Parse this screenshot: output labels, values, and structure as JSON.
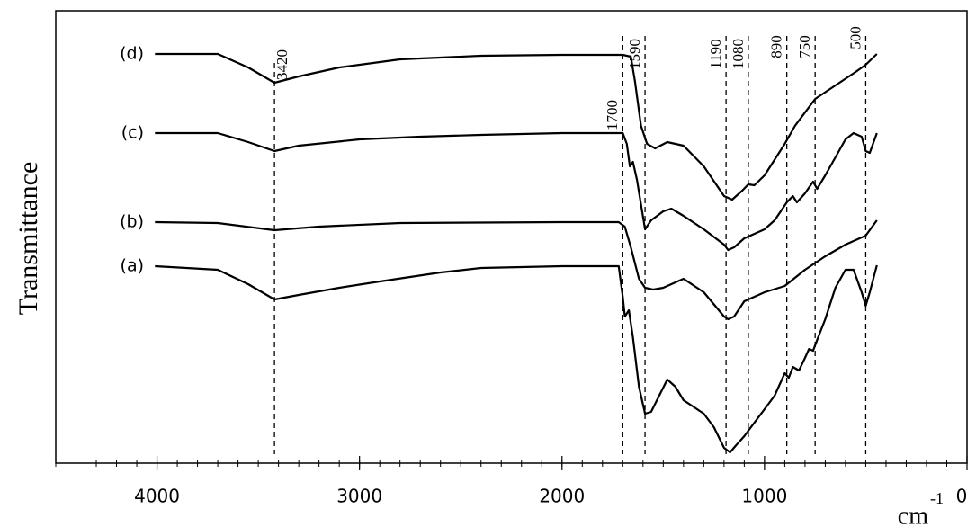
{
  "chart_data": {
    "type": "line",
    "ylabel": "Transmittance",
    "xlabel": "cm",
    "xlabel_sup": "-1",
    "xlim": [
      4500,
      0
    ],
    "xticks": [
      4000,
      3000,
      2000,
      1000,
      0
    ],
    "ylim": [
      0,
      503
    ],
    "color": "#000000",
    "annotations": [
      3420,
      1700,
      1590,
      1190,
      1080,
      890,
      750,
      500
    ],
    "series": [
      {
        "name": "(a)",
        "x": [
          4010,
          3700,
          3550,
          3420,
          3300,
          3100,
          2900,
          2600,
          2400,
          2000,
          1720,
          1700,
          1690,
          1670,
          1650,
          1620,
          1590,
          1560,
          1520,
          1480,
          1440,
          1400,
          1300,
          1250,
          1200,
          1170,
          1140,
          1100,
          1050,
          1000,
          950,
          900,
          880,
          860,
          830,
          800,
          780,
          760,
          740,
          700,
          650,
          600,
          560,
          520,
          500,
          480,
          445
        ],
        "values": [
          219,
          215,
          199,
          182,
          187,
          195,
          202,
          212,
          217,
          219,
          219,
          185,
          163,
          170,
          140,
          85,
          55,
          57,
          75,
          93,
          85,
          70,
          55,
          40,
          17,
          12,
          20,
          30,
          45,
          60,
          75,
          100,
          95,
          107,
          103,
          117,
          127,
          125,
          137,
          160,
          195,
          215,
          215,
          190,
          175,
          190,
          220
        ]
      },
      {
        "name": "(b)",
        "x": [
          4010,
          3700,
          3420,
          3200,
          2800,
          2000,
          1720,
          1690,
          1660,
          1620,
          1590,
          1550,
          1500,
          1400,
          1300,
          1200,
          1180,
          1150,
          1100,
          1000,
          900,
          800,
          700,
          600,
          500,
          445
        ],
        "values": [
          268,
          267,
          259,
          263,
          267,
          268,
          268,
          263,
          240,
          205,
          195,
          193,
          195,
          205,
          190,
          163,
          160,
          163,
          180,
          190,
          197,
          215,
          230,
          243,
          253,
          270
        ]
      },
      {
        "name": "(c)",
        "x": [
          4010,
          3700,
          3550,
          3420,
          3300,
          3000,
          2700,
          2400,
          2000,
          1700,
          1680,
          1665,
          1650,
          1630,
          1590,
          1560,
          1500,
          1460,
          1400,
          1300,
          1200,
          1180,
          1150,
          1100,
          1000,
          950,
          890,
          860,
          840,
          800,
          760,
          740,
          700,
          650,
          600,
          560,
          520,
          500,
          480,
          445
        ],
        "values": [
          367,
          367,
          357,
          347,
          353,
          360,
          363,
          365,
          367,
          367,
          355,
          330,
          335,
          315,
          260,
          270,
          280,
          283,
          275,
          260,
          243,
          237,
          240,
          250,
          260,
          270,
          290,
          297,
          290,
          300,
          313,
          305,
          320,
          340,
          360,
          367,
          363,
          347,
          345,
          367
        ]
      },
      {
        "name": "(d)",
        "x": [
          4010,
          3700,
          3550,
          3420,
          3300,
          3100,
          2800,
          2400,
          2000,
          1700,
          1660,
          1640,
          1610,
          1580,
          1540,
          1480,
          1400,
          1300,
          1200,
          1160,
          1110,
          1080,
          1050,
          1000,
          900,
          850,
          750,
          650,
          550,
          500,
          445
        ],
        "values": [
          455,
          455,
          440,
          423,
          430,
          440,
          449,
          453,
          454,
          454,
          452,
          425,
          375,
          355,
          350,
          357,
          353,
          330,
          297,
          293,
          303,
          310,
          309,
          320,
          355,
          375,
          405,
          420,
          435,
          443,
          455
        ]
      }
    ]
  }
}
